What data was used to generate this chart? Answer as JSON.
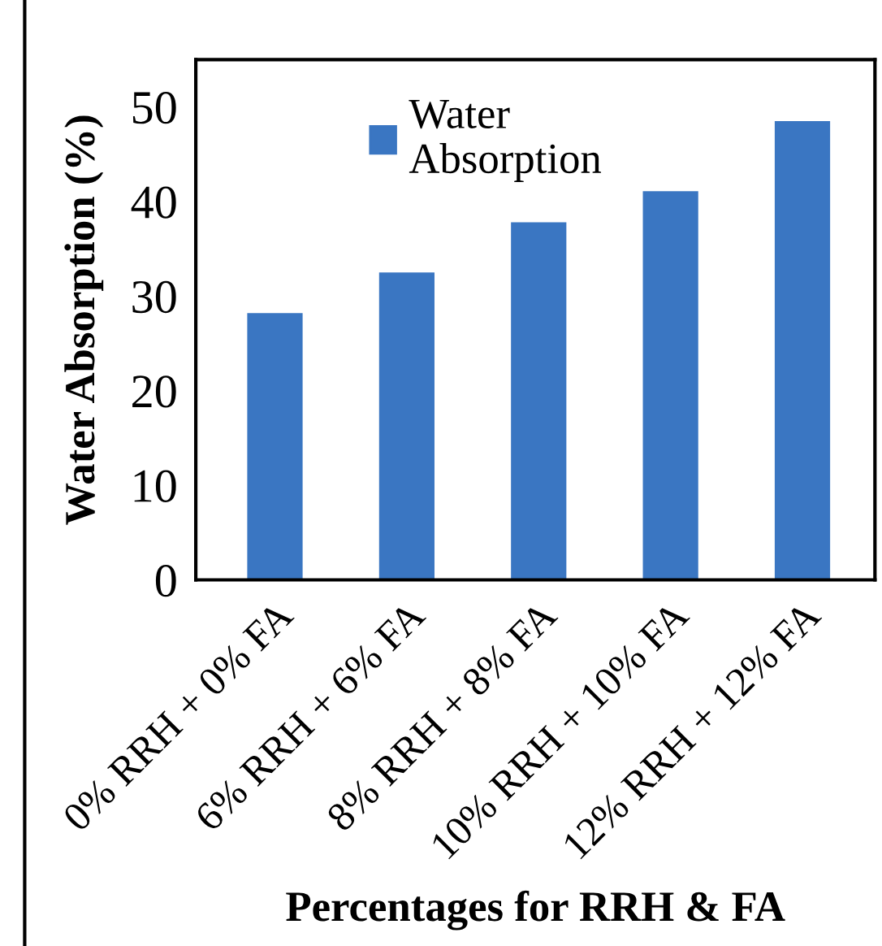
{
  "chart_data": {
    "type": "bar",
    "categories": [
      "0% RRH + 0% FA",
      "6% RRH + 6% FA",
      "8% RRH + 8% FA",
      "10% RRH + 10% FA",
      "12% RRH + 12% FA"
    ],
    "series": [
      {
        "name": "Water\nAbsorption",
        "color": "#3a76c2",
        "values": [
          28.2,
          32.5,
          37.8,
          41.1,
          48.5
        ]
      }
    ],
    "xlabel": "Percentages for RRH & FA",
    "ylabel": "Water Absorption (%)",
    "ylim": [
      0,
      55
    ],
    "yticks": [
      0,
      10,
      20,
      30,
      40,
      50
    ],
    "grid": false,
    "legend": "top left"
  }
}
